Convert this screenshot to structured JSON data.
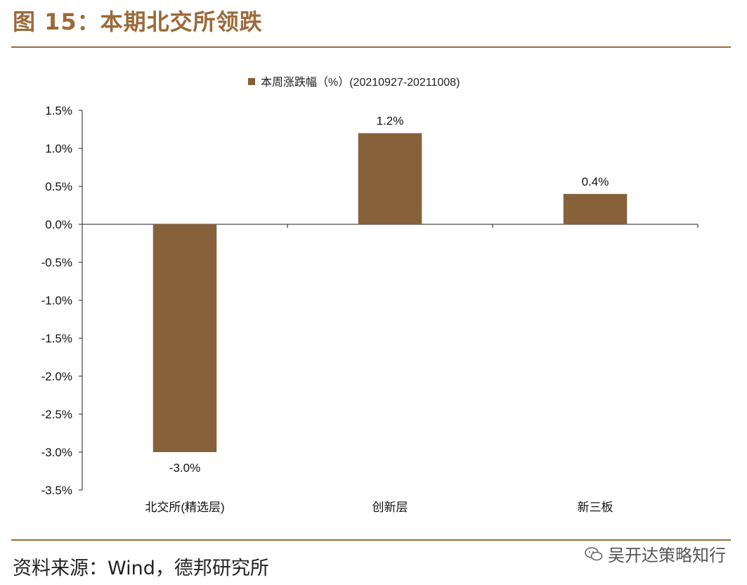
{
  "figure": {
    "title": "图 15：本期北交所领跌",
    "source": "资料来源：Wind，德邦研究所",
    "watermark": "吴开达策略知行",
    "colors": {
      "accent": "#9b6a3a",
      "bar": "#86613a"
    }
  },
  "chart_data": {
    "type": "bar",
    "categories": [
      "北交所(精选层)",
      "创新层",
      "新三板"
    ],
    "series": [
      {
        "name": "本周涨跌幅（%）(20210927-20211008)",
        "values": [
          -3.0,
          1.2,
          0.4
        ]
      }
    ],
    "data_labels": [
      "-3.0%",
      "1.2%",
      "0.4%"
    ],
    "yticks": [
      "1.5%",
      "1.0%",
      "0.5%",
      "0.0%",
      "-0.5%",
      "-1.0%",
      "-1.5%",
      "-2.0%",
      "-2.5%",
      "-3.0%",
      "-3.5%"
    ],
    "ylim": [
      -3.5,
      1.5
    ],
    "grid": false,
    "legend_position": "top-center"
  }
}
